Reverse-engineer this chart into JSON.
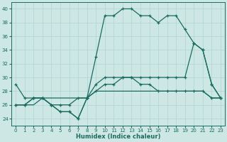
{
  "xlabel": "Humidex (Indice chaleur)",
  "bg_color": "#cde8e4",
  "grid_color": "#b0d5d0",
  "line_color": "#1a6b60",
  "xlim": [
    -0.5,
    23.5
  ],
  "ylim": [
    23,
    41
  ],
  "xticks": [
    0,
    1,
    2,
    3,
    4,
    5,
    6,
    7,
    8,
    9,
    10,
    11,
    12,
    13,
    14,
    15,
    16,
    17,
    18,
    19,
    20,
    21,
    22,
    23
  ],
  "yticks": [
    24,
    26,
    28,
    30,
    32,
    34,
    36,
    38,
    40
  ],
  "s1_x": [
    0,
    1,
    2,
    3,
    4,
    5,
    6,
    7,
    8,
    9,
    10,
    11,
    12,
    13,
    14,
    15,
    16,
    17,
    18,
    19,
    20,
    21,
    22,
    23
  ],
  "s1_y": [
    29,
    27,
    27,
    27,
    26,
    25,
    25,
    24,
    27,
    33,
    39,
    39,
    40,
    40,
    39,
    39,
    38,
    39,
    39,
    37,
    35,
    34,
    29,
    27
  ],
  "s2_x": [
    0,
    1,
    2,
    3,
    4,
    5,
    6,
    7,
    8,
    9,
    10,
    11,
    12,
    13,
    14,
    15,
    16,
    17,
    18,
    19,
    20,
    21,
    22,
    23
  ],
  "s2_y": [
    26,
    26,
    27,
    27,
    26,
    25,
    25,
    24,
    27,
    29,
    30,
    30,
    30,
    30,
    29,
    29,
    28,
    28,
    28,
    28,
    28,
    28,
    27,
    27
  ],
  "s3_x": [
    0,
    1,
    2,
    3,
    4,
    5,
    6,
    7,
    8,
    9,
    10,
    11,
    12,
    13,
    14,
    15,
    16,
    17,
    18,
    19,
    20,
    21,
    22,
    23
  ],
  "s3_y": [
    26,
    26,
    26,
    27,
    27,
    27,
    27,
    27,
    27,
    28,
    28,
    28,
    28,
    28,
    28,
    28,
    28,
    28,
    28,
    28,
    28,
    28,
    27,
    27
  ],
  "s4_x": [
    0,
    1,
    2,
    3,
    4,
    5,
    6,
    7,
    8,
    9,
    10,
    11,
    12,
    13,
    14,
    15,
    16,
    17,
    18,
    19,
    20,
    21,
    22,
    23
  ],
  "s4_y": [
    26,
    26,
    27,
    27,
    26,
    26,
    26,
    27,
    27,
    28,
    29,
    29,
    30,
    30,
    30,
    30,
    30,
    30,
    30,
    30,
    35,
    34,
    29,
    27
  ]
}
